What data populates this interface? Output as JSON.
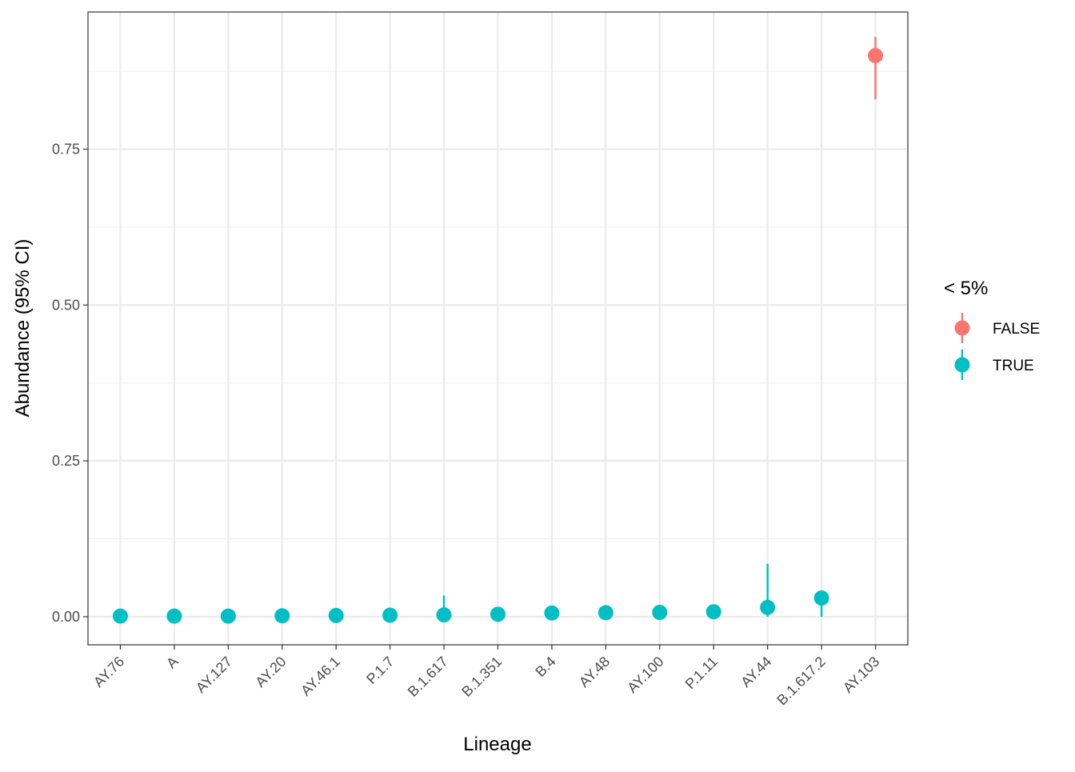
{
  "chart_data": {
    "type": "scatter",
    "xlabel": "Lineage",
    "ylabel": "Abundance (95% CI)",
    "categories": [
      "AY.76",
      "A",
      "AY.127",
      "AY.20",
      "AY.46.1",
      "P.1.7",
      "B.1.617",
      "B.1.351",
      "B.4",
      "AY.48",
      "AY.100",
      "P.1.11",
      "AY.44",
      "B.1.617.2",
      "AY.103"
    ],
    "ylim": [
      -0.045,
      0.97
    ],
    "y_ticks": [
      0,
      0.25,
      0.5,
      0.75
    ],
    "y_tick_labels": [
      "0.00",
      "0.25",
      "0.50",
      "0.75"
    ],
    "grid": true,
    "legend": {
      "title": "< 5%",
      "position": "right",
      "entries": [
        {
          "label": "FALSE",
          "color": "#F8766D"
        },
        {
          "label": "TRUE",
          "color": "#00BFC4"
        }
      ]
    },
    "points": [
      {
        "category": "AY.76",
        "y": 0.001,
        "low": 0.001,
        "high": 0.001,
        "group": "TRUE"
      },
      {
        "category": "A",
        "y": 0.001,
        "low": 0.001,
        "high": 0.001,
        "group": "TRUE"
      },
      {
        "category": "AY.127",
        "y": 0.001,
        "low": 0.001,
        "high": 0.001,
        "group": "TRUE"
      },
      {
        "category": "AY.20",
        "y": 0.0015,
        "low": 0.0015,
        "high": 0.0015,
        "group": "TRUE"
      },
      {
        "category": "AY.46.1",
        "y": 0.002,
        "low": 0.002,
        "high": 0.002,
        "group": "TRUE"
      },
      {
        "category": "P.1.7",
        "y": 0.0025,
        "low": 0.0025,
        "high": 0.0025,
        "group": "TRUE"
      },
      {
        "category": "B.1.617",
        "y": 0.003,
        "low": 0.0,
        "high": 0.034,
        "group": "TRUE"
      },
      {
        "category": "B.1.351",
        "y": 0.004,
        "low": 0.004,
        "high": 0.004,
        "group": "TRUE"
      },
      {
        "category": "B.4",
        "y": 0.006,
        "low": 0.006,
        "high": 0.006,
        "group": "TRUE"
      },
      {
        "category": "AY.48",
        "y": 0.0065,
        "low": 0.0065,
        "high": 0.0065,
        "group": "TRUE"
      },
      {
        "category": "AY.100",
        "y": 0.007,
        "low": 0.007,
        "high": 0.007,
        "group": "TRUE"
      },
      {
        "category": "P.1.11",
        "y": 0.008,
        "low": 0.008,
        "high": 0.008,
        "group": "TRUE"
      },
      {
        "category": "AY.44",
        "y": 0.015,
        "low": 0.0,
        "high": 0.085,
        "group": "TRUE"
      },
      {
        "category": "B.1.617.2",
        "y": 0.03,
        "low": 0.0,
        "high": 0.03,
        "group": "TRUE"
      },
      {
        "category": "AY.103",
        "y": 0.9,
        "low": 0.83,
        "high": 0.93,
        "group": "FALSE"
      }
    ]
  }
}
